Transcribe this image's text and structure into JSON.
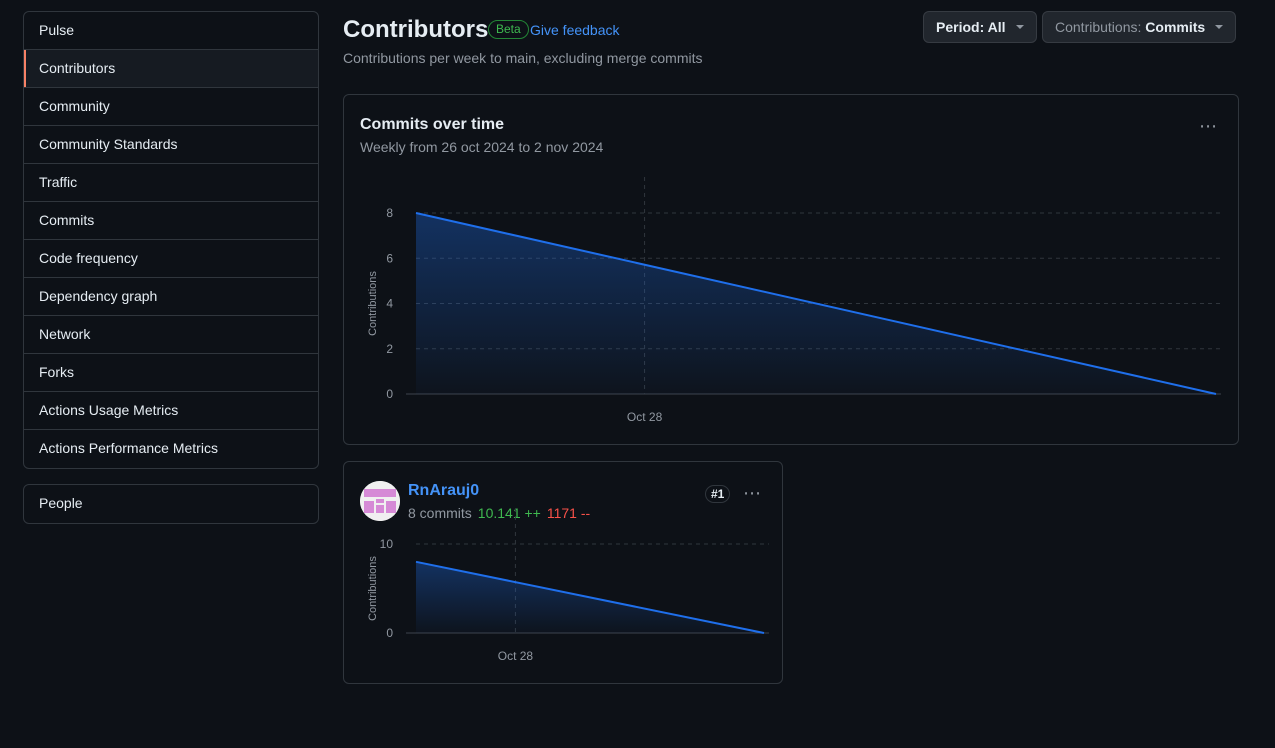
{
  "sidebar": {
    "items": [
      "Pulse",
      "Contributors",
      "Community",
      "Community Standards",
      "Traffic",
      "Commits",
      "Code frequency",
      "Dependency graph",
      "Network",
      "Forks",
      "Actions Usage Metrics",
      "Actions Performance Metrics"
    ],
    "selected": "Contributors",
    "people_label": "People"
  },
  "header": {
    "title": "Contributors",
    "beta": "Beta",
    "feedback": "Give feedback",
    "subtitle": "Contributions per week to main, excluding merge commits"
  },
  "controls": {
    "period_label": "Period: All",
    "contrib_prefix": "Contributions:",
    "contrib_value": "Commits"
  },
  "main_chart": {
    "title": "Commits over time",
    "subtitle": "Weekly from 26 oct 2024 to 2 nov 2024"
  },
  "contributor": {
    "name": "RnArauj0",
    "commits": "8 commits",
    "additions": "10.141 ++",
    "deletions": "1171 --",
    "rank": "#1"
  },
  "colors": {
    "accent": "#1f6feb",
    "selected_marker": "#f78166",
    "additions": "#3fb950",
    "deletions": "#f85149"
  },
  "chart_data": [
    {
      "type": "area",
      "title": "Commits over time",
      "ylabel": "Contributions",
      "x": [
        "2024-10-26",
        "2024-11-02"
      ],
      "series": [
        {
          "values": [
            8,
            0
          ]
        }
      ],
      "ylim": [
        0,
        8
      ],
      "yticks": [
        0,
        2,
        4,
        6,
        8
      ],
      "xticks": [
        {
          "label": "Oct 28",
          "x": "2024-10-28"
        }
      ],
      "grid": true
    },
    {
      "type": "area",
      "ylabel": "Contributions",
      "x": [
        "2024-10-26",
        "2024-11-02"
      ],
      "series": [
        {
          "values": [
            8,
            0
          ]
        }
      ],
      "ylim": [
        0,
        10
      ],
      "yticks": [
        0,
        10
      ],
      "xticks": [
        {
          "label": "Oct 28",
          "x": "2024-10-28"
        }
      ],
      "grid": true
    }
  ]
}
